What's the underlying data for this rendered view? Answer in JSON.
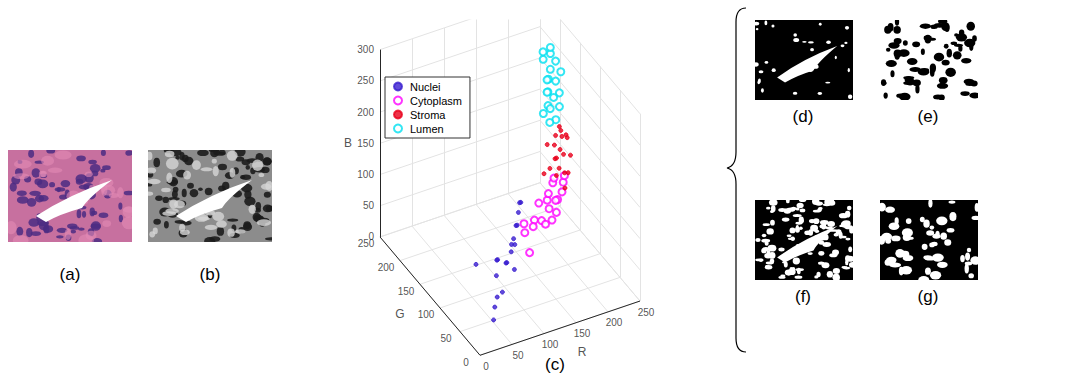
{
  "panel_labels": [
    "(a)",
    "(b)",
    "(c)",
    "(d)",
    "(e)",
    "(f)",
    "(g)"
  ],
  "chart_data": {
    "type": "scatter3d",
    "x_label": "R",
    "y_label": "G",
    "z_label": "B",
    "xlim": [
      0,
      250
    ],
    "xticks": [
      0,
      50,
      100,
      150,
      200,
      250
    ],
    "ylim": [
      0,
      250
    ],
    "yticks": [
      0,
      50,
      100,
      150,
      200,
      250
    ],
    "zlim": [
      0,
      300
    ],
    "zticks": [
      0,
      50,
      100,
      150,
      200,
      250,
      300
    ],
    "grid": true,
    "legend": "upper left",
    "series": [
      {
        "name": "Nuclei",
        "color": "#3a1ed0",
        "marker": "point",
        "values": [
          [
            80,
            50,
            100
          ],
          [
            90,
            60,
            110
          ],
          [
            70,
            45,
            90
          ],
          [
            100,
            70,
            120
          ],
          [
            60,
            40,
            50
          ],
          [
            75,
            55,
            80
          ],
          [
            85,
            50,
            70
          ],
          [
            65,
            60,
            85
          ],
          [
            110,
            80,
            130
          ],
          [
            40,
            30,
            20
          ],
          [
            55,
            45,
            40
          ],
          [
            95,
            65,
            95
          ],
          [
            50,
            90,
            60
          ],
          [
            120,
            90,
            135
          ],
          [
            70,
            70,
            75
          ],
          [
            45,
            35,
            35
          ],
          [
            105,
            75,
            115
          ],
          [
            60,
            55,
            65
          ],
          [
            88,
            62,
            100
          ],
          [
            115,
            85,
            140
          ]
        ]
      },
      {
        "name": "Cytoplasm",
        "color": "#ff00ff",
        "marker": "circle",
        "values": [
          [
            190,
            110,
            100
          ],
          [
            180,
            120,
            95
          ],
          [
            200,
            115,
            105
          ],
          [
            170,
            125,
            90
          ],
          [
            185,
            105,
            85
          ],
          [
            195,
            130,
            110
          ],
          [
            160,
            120,
            70
          ],
          [
            175,
            100,
            80
          ],
          [
            205,
            120,
            115
          ],
          [
            150,
            130,
            60
          ],
          [
            165,
            110,
            75
          ],
          [
            185,
            125,
            100
          ],
          [
            140,
            100,
            40
          ],
          [
            155,
            115,
            65
          ],
          [
            178,
            112,
            88
          ],
          [
            210,
            125,
            120
          ],
          [
            145,
            120,
            55
          ],
          [
            192,
            118,
            92
          ],
          [
            168,
            105,
            72
          ],
          [
            200,
            135,
            112
          ]
        ]
      },
      {
        "name": "Stroma",
        "color": "#e8001c",
        "marker": "point",
        "values": [
          [
            220,
            150,
            170
          ],
          [
            215,
            155,
            160
          ],
          [
            225,
            145,
            165
          ],
          [
            210,
            150,
            150
          ],
          [
            230,
            150,
            155
          ],
          [
            205,
            160,
            145
          ],
          [
            218,
            140,
            140
          ],
          [
            228,
            160,
            150
          ],
          [
            212,
            148,
            130
          ],
          [
            222,
            155,
            135
          ],
          [
            208,
            135,
            125
          ],
          [
            232,
            145,
            130
          ],
          [
            216,
            158,
            120
          ],
          [
            203,
            150,
            115
          ],
          [
            224,
            138,
            110
          ],
          [
            210,
            145,
            105
          ],
          [
            226,
            150,
            100
          ],
          [
            200,
            160,
            100
          ],
          [
            214,
            130,
            95
          ],
          [
            219,
            152,
            175
          ]
        ]
      },
      {
        "name": "Lumen",
        "color": "#00e0f0",
        "marker": "circle",
        "values": [
          [
            235,
            200,
            250
          ],
          [
            240,
            195,
            240
          ],
          [
            230,
            210,
            235
          ],
          [
            245,
            190,
            225
          ],
          [
            238,
            205,
            220
          ],
          [
            232,
            200,
            210
          ],
          [
            242,
            198,
            205
          ],
          [
            236,
            210,
            200
          ],
          [
            228,
            195,
            195
          ],
          [
            244,
            192,
            190
          ],
          [
            233,
            205,
            185
          ],
          [
            240,
            200,
            178
          ],
          [
            230,
            198,
            170
          ],
          [
            246,
            195,
            165
          ],
          [
            236,
            202,
            160
          ],
          [
            229,
            208,
            150
          ],
          [
            241,
            196,
            145
          ],
          [
            234,
            200,
            140
          ],
          [
            238,
            205,
            255
          ],
          [
            231,
            212,
            245
          ]
        ]
      }
    ]
  }
}
